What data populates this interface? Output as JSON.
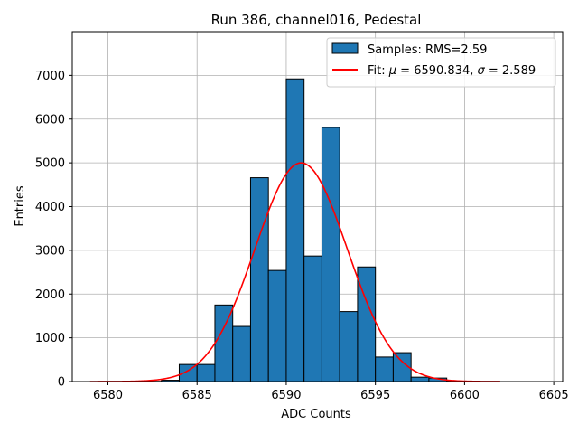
{
  "chart_data": {
    "type": "bar",
    "title": "Run 386, channel016, Pedestal",
    "xlabel": "ADC Counts",
    "ylabel": "Entries",
    "xlim": [
      6578,
      6605.5
    ],
    "ylim": [
      0,
      8000
    ],
    "x_ticks": [
      6580,
      6585,
      6590,
      6595,
      6600,
      6605
    ],
    "y_ticks": [
      0,
      1000,
      2000,
      3000,
      4000,
      5000,
      6000,
      7000
    ],
    "grid": true,
    "legend_position": "top-right",
    "histogram": {
      "name": "Samples: RMS=2.59",
      "color": "#1f77b4",
      "edge_color": "#000000",
      "bins": [
        {
          "left": 6582,
          "right": 6583,
          "count": 5
        },
        {
          "left": 6583,
          "right": 6584,
          "count": 30
        },
        {
          "left": 6584,
          "right": 6585,
          "count": 390
        },
        {
          "left": 6585,
          "right": 6586,
          "count": 390
        },
        {
          "left": 6586,
          "right": 6587,
          "count": 1750
        },
        {
          "left": 6587,
          "right": 6588,
          "count": 1260
        },
        {
          "left": 6588,
          "right": 6589,
          "count": 4660
        },
        {
          "left": 6589,
          "right": 6590,
          "count": 2540
        },
        {
          "left": 6590,
          "right": 6591,
          "count": 6920
        },
        {
          "left": 6591,
          "right": 6592,
          "count": 2870
        },
        {
          "left": 6592,
          "right": 6593,
          "count": 5810
        },
        {
          "left": 6593,
          "right": 6594,
          "count": 1600
        },
        {
          "left": 6594,
          "right": 6595,
          "count": 2620
        },
        {
          "left": 6595,
          "right": 6596,
          "count": 560
        },
        {
          "left": 6596,
          "right": 6597,
          "count": 660
        },
        {
          "left": 6597,
          "right": 6598,
          "count": 100
        },
        {
          "left": 6598,
          "right": 6599,
          "count": 80
        },
        {
          "left": 6599,
          "right": 6600,
          "count": 10
        }
      ]
    },
    "fit": {
      "name_prefix": "Fit: ",
      "name_mu": "μ",
      "name_mid": " = 6590.834, ",
      "name_sigma": "σ",
      "name_suffix": " = 2.589",
      "color": "#ff0000",
      "mu": 6590.834,
      "sigma": 2.589,
      "amplitude": 5000,
      "x_range": [
        6579,
        6602
      ]
    }
  }
}
